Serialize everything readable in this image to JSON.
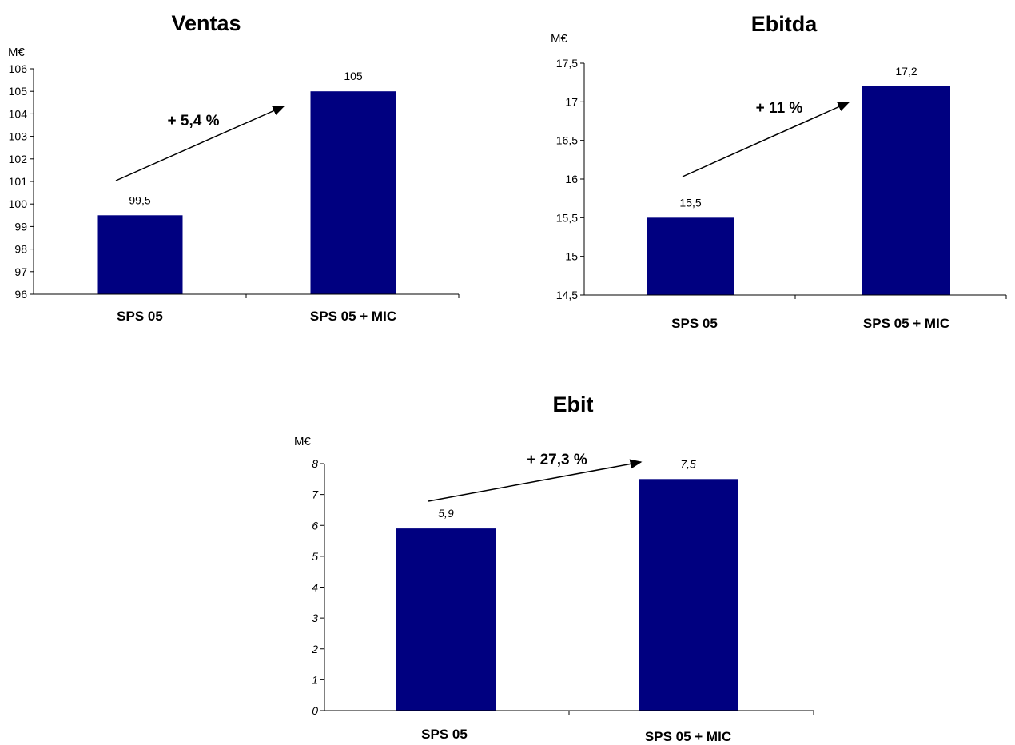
{
  "colors": {
    "bar": "#000080",
    "axis": "#000000",
    "background": "#ffffff"
  },
  "chart_data": [
    {
      "type": "bar",
      "title": "Ventas",
      "ylabel": "M€",
      "categories": [
        "SPS 05",
        "SPS 05 + MIC"
      ],
      "values": [
        99.5,
        105
      ],
      "value_labels": [
        "99,5",
        "105"
      ],
      "ylim": [
        96,
        106
      ],
      "yticks": [
        96,
        97,
        98,
        99,
        100,
        101,
        102,
        103,
        104,
        105,
        106
      ],
      "ytick_labels": [
        "96",
        "97",
        "98",
        "99",
        "100",
        "101",
        "102",
        "103",
        "104",
        "105",
        "106"
      ],
      "italic_labels": false,
      "grid": false,
      "annotation": {
        "text": "+ 5,4 %"
      }
    },
    {
      "type": "bar",
      "title": "Ebitda",
      "ylabel": "M€",
      "categories": [
        "SPS 05",
        "SPS 05 + MIC"
      ],
      "values": [
        15.5,
        17.2
      ],
      "value_labels": [
        "15,5",
        "17,2"
      ],
      "ylim": [
        14.5,
        17.5
      ],
      "yticks": [
        14.5,
        15,
        15.5,
        16,
        16.5,
        17,
        17.5
      ],
      "ytick_labels": [
        "14,5",
        "15",
        "15,5",
        "16",
        "16,5",
        "17",
        "17,5"
      ],
      "italic_labels": false,
      "grid": false,
      "annotation": {
        "text": "+ 11 %"
      }
    },
    {
      "type": "bar",
      "title": "Ebit",
      "ylabel": "M€",
      "categories": [
        "SPS 05",
        "SPS 05 + MIC"
      ],
      "values": [
        5.9,
        7.5
      ],
      "value_labels": [
        "5,9",
        "7,5"
      ],
      "ylim": [
        0,
        8
      ],
      "yticks": [
        0,
        1,
        2,
        3,
        4,
        5,
        6,
        7,
        8
      ],
      "ytick_labels": [
        "0",
        "1",
        "2",
        "3",
        "4",
        "5",
        "6",
        "7",
        "8"
      ],
      "italic_labels": true,
      "grid": false,
      "annotation": {
        "text": "+ 27,3 %"
      }
    }
  ]
}
